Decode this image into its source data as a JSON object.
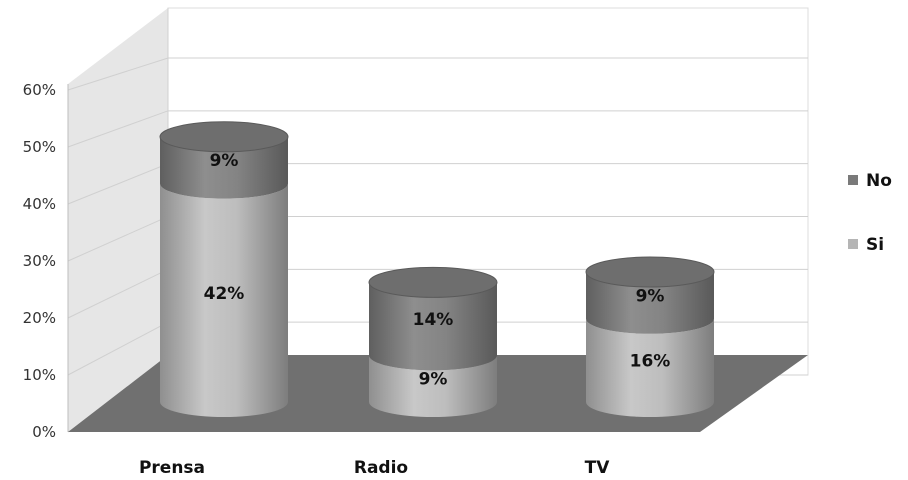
{
  "chart_data": {
    "type": "bar",
    "style": "3d-stacked-cylinder",
    "categories": [
      "Prensa",
      "Radio",
      "TV"
    ],
    "series": [
      {
        "name": "Si",
        "values": [
          42,
          9,
          16
        ]
      },
      {
        "name": "No",
        "values": [
          9,
          14,
          9
        ]
      }
    ],
    "value_labels": [
      [
        "42%",
        "9%",
        "16%"
      ],
      [
        "9%",
        "14%",
        "9%"
      ]
    ],
    "y_ticks": [
      "0%",
      "10%",
      "20%",
      "30%",
      "40%",
      "50%",
      "60%"
    ],
    "ylim": [
      0,
      60
    ],
    "grid": true,
    "legend_position": "right",
    "colors": {
      "Si": "#b5b5b5",
      "No": "#7a7a7a",
      "floor": "#707070",
      "wall": "#e6e6e6",
      "grid": "#d0d0d0"
    }
  }
}
